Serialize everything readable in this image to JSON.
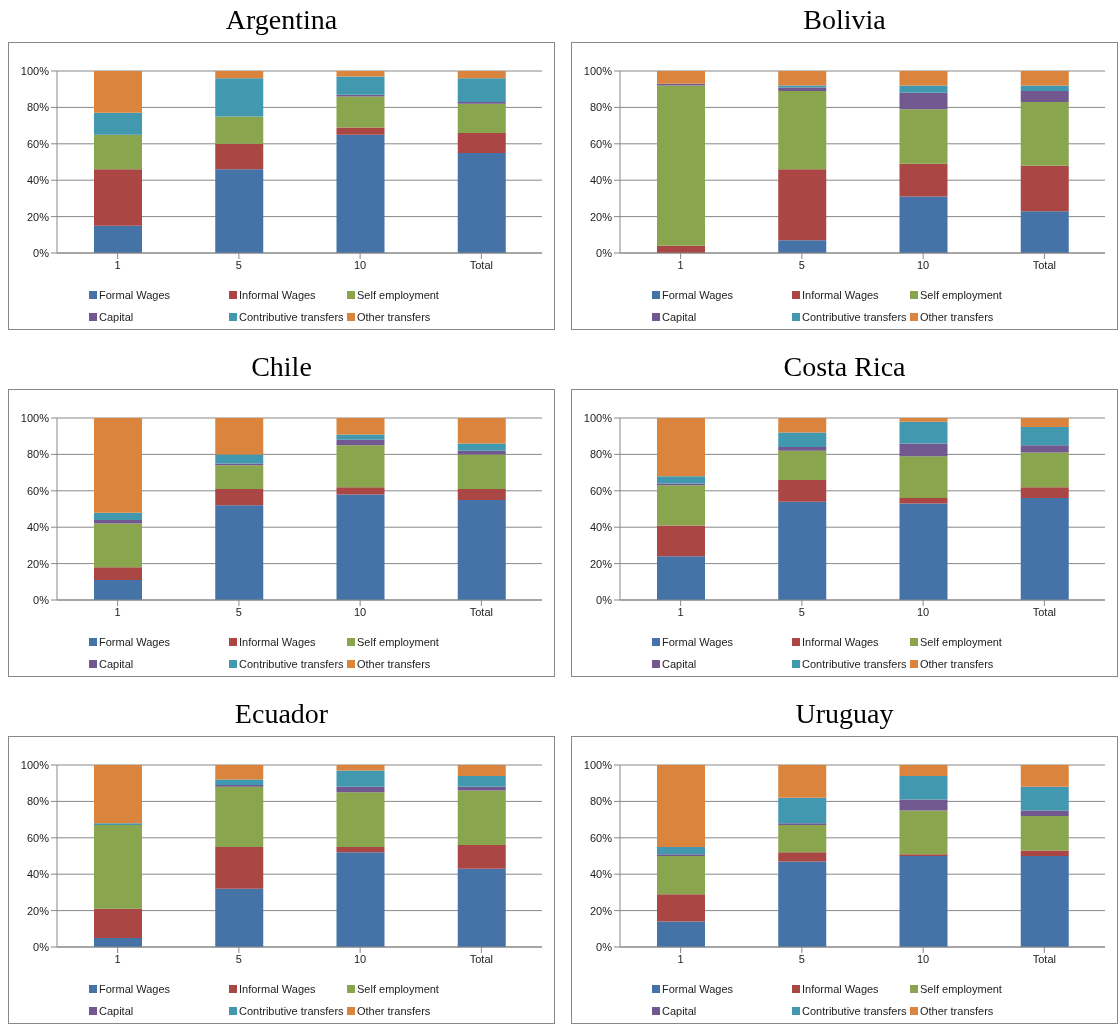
{
  "chart_data": [
    {
      "type": "bar",
      "title": "Argentina",
      "categories": [
        "1",
        "5",
        "10",
        "Total"
      ],
      "stacked": true,
      "ylim": [
        0,
        100
      ],
      "yticks": [
        {
          "value": 0,
          "label": "0%"
        },
        {
          "value": 20,
          "label": "20%"
        },
        {
          "value": 40,
          "label": "40%"
        },
        {
          "value": 60,
          "label": "60%"
        },
        {
          "value": 80,
          "label": "80%"
        },
        {
          "value": 100,
          "label": "100%"
        }
      ],
      "grid": "y",
      "legend": "bottom",
      "series": [
        {
          "name": "Formal Wages",
          "color": "#4572a7",
          "values": [
            15,
            46,
            65,
            55
          ]
        },
        {
          "name": "Informal Wages",
          "color": "#aa4643",
          "values": [
            31,
            14,
            4,
            11
          ]
        },
        {
          "name": "Self employment",
          "color": "#89a54e",
          "values": [
            19,
            15,
            17,
            16
          ]
        },
        {
          "name": "Capital",
          "color": "#71588f",
          "values": [
            0,
            0,
            1,
            1
          ]
        },
        {
          "name": "Contributive transfers",
          "color": "#4198af",
          "values": [
            12,
            21,
            10,
            13
          ]
        },
        {
          "name": "Other transfers",
          "color": "#db843d",
          "values": [
            23,
            4,
            3,
            4
          ]
        }
      ]
    },
    {
      "type": "bar",
      "title": "Bolivia",
      "categories": [
        "1",
        "5",
        "10",
        "Total"
      ],
      "stacked": true,
      "ylim": [
        0,
        100
      ],
      "yticks": [
        {
          "value": 0,
          "label": "0%"
        },
        {
          "value": 20,
          "label": "20%"
        },
        {
          "value": 40,
          "label": "40%"
        },
        {
          "value": 60,
          "label": "60%"
        },
        {
          "value": 80,
          "label": "80%"
        },
        {
          "value": 100,
          "label": "100%"
        }
      ],
      "grid": "y",
      "legend": "bottom",
      "series": [
        {
          "name": "Formal Wages",
          "color": "#4572a7",
          "values": [
            0,
            7,
            31,
            23
          ]
        },
        {
          "name": "Informal Wages",
          "color": "#aa4643",
          "values": [
            4,
            39,
            18,
            25
          ]
        },
        {
          "name": "Self employment",
          "color": "#89a54e",
          "values": [
            88,
            43,
            30,
            35
          ]
        },
        {
          "name": "Capital",
          "color": "#71588f",
          "values": [
            1,
            2,
            9,
            6
          ]
        },
        {
          "name": "Contributive transfers",
          "color": "#4198af",
          "values": [
            0,
            1,
            4,
            3
          ]
        },
        {
          "name": "Other transfers",
          "color": "#db843d",
          "values": [
            7,
            8,
            8,
            8
          ]
        }
      ]
    },
    {
      "type": "bar",
      "title": "Chile",
      "categories": [
        "1",
        "5",
        "10",
        "Total"
      ],
      "stacked": true,
      "ylim": [
        0,
        100
      ],
      "yticks": [
        {
          "value": 0,
          "label": "0%"
        },
        {
          "value": 20,
          "label": "20%"
        },
        {
          "value": 40,
          "label": "40%"
        },
        {
          "value": 60,
          "label": "60%"
        },
        {
          "value": 80,
          "label": "80%"
        },
        {
          "value": 100,
          "label": "100%"
        }
      ],
      "grid": "y",
      "legend": "bottom",
      "series": [
        {
          "name": "Formal Wages",
          "color": "#4572a7",
          "values": [
            11,
            52,
            58,
            55
          ]
        },
        {
          "name": "Informal Wages",
          "color": "#aa4643",
          "values": [
            7,
            9,
            4,
            6
          ]
        },
        {
          "name": "Self employment",
          "color": "#89a54e",
          "values": [
            24,
            13,
            23,
            19
          ]
        },
        {
          "name": "Capital",
          "color": "#71588f",
          "values": [
            2,
            1,
            3,
            2
          ]
        },
        {
          "name": "Contributive transfers",
          "color": "#4198af",
          "values": [
            4,
            5,
            3,
            4
          ]
        },
        {
          "name": "Other transfers",
          "color": "#db843d",
          "values": [
            52,
            20,
            9,
            14
          ]
        }
      ]
    },
    {
      "type": "bar",
      "title": "Costa Rica",
      "categories": [
        "1",
        "5",
        "10",
        "Total"
      ],
      "stacked": true,
      "ylim": [
        0,
        100
      ],
      "yticks": [
        {
          "value": 0,
          "label": "0%"
        },
        {
          "value": 20,
          "label": "20%"
        },
        {
          "value": 40,
          "label": "40%"
        },
        {
          "value": 60,
          "label": "60%"
        },
        {
          "value": 80,
          "label": "80%"
        },
        {
          "value": 100,
          "label": "100%"
        }
      ],
      "grid": "y",
      "legend": "bottom",
      "series": [
        {
          "name": "Formal Wages",
          "color": "#4572a7",
          "values": [
            24,
            54,
            53,
            56
          ]
        },
        {
          "name": "Informal Wages",
          "color": "#aa4643",
          "values": [
            17,
            12,
            3,
            6
          ]
        },
        {
          "name": "Self employment",
          "color": "#89a54e",
          "values": [
            22,
            16,
            23,
            19
          ]
        },
        {
          "name": "Capital",
          "color": "#71588f",
          "values": [
            1,
            2,
            7,
            4
          ]
        },
        {
          "name": "Contributive transfers",
          "color": "#4198af",
          "values": [
            4,
            8,
            12,
            10
          ]
        },
        {
          "name": "Other transfers",
          "color": "#db843d",
          "values": [
            32,
            8,
            2,
            5
          ]
        }
      ]
    },
    {
      "type": "bar",
      "title": "Ecuador",
      "categories": [
        "1",
        "5",
        "10",
        "Total"
      ],
      "stacked": true,
      "ylim": [
        0,
        100
      ],
      "yticks": [
        {
          "value": 0,
          "label": "0%"
        },
        {
          "value": 20,
          "label": "20%"
        },
        {
          "value": 40,
          "label": "40%"
        },
        {
          "value": 60,
          "label": "60%"
        },
        {
          "value": 80,
          "label": "80%"
        },
        {
          "value": 100,
          "label": "100%"
        }
      ],
      "grid": "y",
      "legend": "bottom",
      "series": [
        {
          "name": "Formal Wages",
          "color": "#4572a7",
          "values": [
            5,
            32,
            52,
            43
          ]
        },
        {
          "name": "Informal Wages",
          "color": "#aa4643",
          "values": [
            16,
            23,
            3,
            13
          ]
        },
        {
          "name": "Self employment",
          "color": "#89a54e",
          "values": [
            46,
            33,
            30,
            30
          ]
        },
        {
          "name": "Capital",
          "color": "#71588f",
          "values": [
            0,
            1,
            3,
            2
          ]
        },
        {
          "name": "Contributive transfers",
          "color": "#4198af",
          "values": [
            1,
            3,
            9,
            6
          ]
        },
        {
          "name": "Other transfers",
          "color": "#db843d",
          "values": [
            32,
            8,
            3,
            6
          ]
        }
      ]
    },
    {
      "type": "bar",
      "title": "Uruguay",
      "categories": [
        "1",
        "5",
        "10",
        "Total"
      ],
      "stacked": true,
      "ylim": [
        0,
        100
      ],
      "yticks": [
        {
          "value": 0,
          "label": "0%"
        },
        {
          "value": 20,
          "label": "20%"
        },
        {
          "value": 40,
          "label": "40%"
        },
        {
          "value": 60,
          "label": "60%"
        },
        {
          "value": 80,
          "label": "80%"
        },
        {
          "value": 100,
          "label": "100%"
        }
      ],
      "grid": "y",
      "legend": "bottom",
      "series": [
        {
          "name": "Formal Wages",
          "color": "#4572a7",
          "values": [
            14,
            47,
            50,
            50
          ]
        },
        {
          "name": "Informal Wages",
          "color": "#aa4643",
          "values": [
            15,
            5,
            1,
            3
          ]
        },
        {
          "name": "Self employment",
          "color": "#89a54e",
          "values": [
            21,
            15,
            24,
            19
          ]
        },
        {
          "name": "Capital",
          "color": "#71588f",
          "values": [
            1,
            1,
            6,
            3
          ]
        },
        {
          "name": "Contributive transfers",
          "color": "#4198af",
          "values": [
            4,
            14,
            13,
            13
          ]
        },
        {
          "name": "Other transfers",
          "color": "#db843d",
          "values": [
            45,
            18,
            6,
            12
          ]
        }
      ]
    }
  ]
}
